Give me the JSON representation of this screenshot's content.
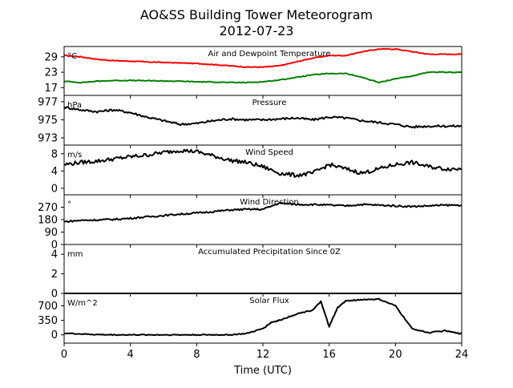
{
  "figure": {
    "title_line1": "AO&SS Building Tower Meteorogram",
    "title_line2": "2012-07-23",
    "xlabel": "Time (UTC)"
  },
  "colors": {
    "temperature": "#ff0000",
    "dewpoint": "#008000",
    "default": "#000000"
  },
  "chart_data": [
    {
      "type": "line",
      "title": "Air and Dewpoint Temperature",
      "unit": "°C",
      "ylim": [
        14,
        33
      ],
      "yticks": [
        17,
        23,
        29
      ],
      "series": [
        {
          "color": "#ff0000",
          "x": [
            0,
            1,
            2,
            3,
            4,
            5,
            6,
            7,
            8,
            9,
            10,
            11,
            12,
            13,
            14,
            15,
            16,
            17,
            18,
            19,
            20,
            21,
            22,
            23,
            24
          ],
          "y": [
            29.5,
            29,
            28,
            27.5,
            27.3,
            27,
            26.8,
            26.6,
            26.4,
            26,
            25.5,
            25,
            25,
            25.5,
            27,
            28.5,
            29.5,
            29.5,
            31,
            32,
            32,
            31,
            30,
            30,
            30
          ]
        },
        {
          "color": "#008000",
          "x": [
            0,
            1,
            2,
            3,
            4,
            5,
            6,
            7,
            8,
            9,
            10,
            11,
            12,
            13,
            14,
            15,
            16,
            17,
            18,
            19,
            20,
            21,
            22,
            23,
            24
          ],
          "y": [
            19.5,
            19,
            19.5,
            19.8,
            19.8,
            19.7,
            19.6,
            19.5,
            19.3,
            19.2,
            19,
            19,
            19.3,
            20,
            21,
            22,
            22.5,
            22.5,
            21,
            19,
            20.5,
            21.5,
            23,
            23,
            23
          ]
        }
      ],
      "xlim": [
        0,
        24
      ],
      "xticks": [
        0,
        4,
        8,
        12,
        16,
        20,
        24
      ]
    },
    {
      "type": "line",
      "title": "Pressure",
      "unit": "hPa",
      "ylim": [
        972.2,
        977.7
      ],
      "yticks": [
        973,
        975,
        977
      ],
      "series": [
        {
          "color": "#000000",
          "x": [
            0,
            1,
            2,
            3,
            4,
            5,
            6,
            7,
            8,
            9,
            10,
            11,
            12,
            13,
            14,
            15,
            16,
            17,
            18,
            19,
            20,
            21,
            22,
            23,
            24
          ],
          "y": [
            976.4,
            976.1,
            975.9,
            976.1,
            975.8,
            975.3,
            974.9,
            974.5,
            974.6,
            974.9,
            975.1,
            975,
            975,
            975.1,
            975.2,
            975.0,
            975.3,
            975.2,
            974.9,
            974.7,
            974.5,
            974.2,
            974.3,
            974.3,
            974.3
          ]
        }
      ],
      "xlim": [
        0,
        24
      ],
      "xticks": [
        0,
        4,
        8,
        12,
        16,
        20,
        24
      ]
    },
    {
      "type": "line",
      "title": "Wind Speed",
      "unit": "m/s",
      "ylim": [
        -1.5,
        10
      ],
      "yticks": [
        0,
        4,
        8
      ],
      "series": [
        {
          "color": "#000000",
          "x": [
            0,
            1,
            2,
            3,
            4,
            5,
            6,
            7,
            8,
            9,
            10,
            11,
            12,
            13,
            14,
            15,
            16,
            17,
            18,
            19,
            20,
            21,
            22,
            23,
            24
          ],
          "y": [
            5.5,
            6,
            6.3,
            6.8,
            7.3,
            7.7,
            8.3,
            8.8,
            8.5,
            7.5,
            6.5,
            6,
            5,
            3.5,
            3,
            3.5,
            5.5,
            4.5,
            3.5,
            4.5,
            5.5,
            6,
            5,
            4.5,
            4.5
          ]
        }
      ],
      "xlim": [
        0,
        24
      ],
      "xticks": [
        0,
        4,
        8,
        12,
        16,
        20,
        24
      ]
    },
    {
      "type": "line",
      "title": "Wind Direction",
      "unit": "°",
      "ylim": [
        0,
        360
      ],
      "yticks": [
        0,
        90,
        180,
        270
      ],
      "series": [
        {
          "color": "#000000",
          "x": [
            0,
            1,
            2,
            3,
            4,
            5,
            6,
            7,
            8,
            9,
            10,
            11,
            12,
            13,
            14,
            15,
            16,
            17,
            18,
            19,
            20,
            21,
            22,
            23,
            24
          ],
          "y": [
            165,
            175,
            178,
            182,
            190,
            200,
            210,
            220,
            228,
            238,
            250,
            255,
            255,
            300,
            290,
            290,
            285,
            280,
            290,
            285,
            280,
            275,
            280,
            285,
            285
          ]
        }
      ],
      "xlim": [
        0,
        24
      ],
      "xticks": [
        0,
        4,
        8,
        12,
        16,
        20,
        24
      ]
    },
    {
      "type": "line",
      "title": "Accumulated Precipitation Since 0Z",
      "unit": "mm",
      "ylim": [
        0,
        5
      ],
      "yticks": [
        0,
        2,
        4
      ],
      "series": [
        {
          "color": "#000000",
          "x": [
            0,
            24
          ],
          "y": [
            0,
            0
          ]
        }
      ],
      "xlim": [
        0,
        24
      ],
      "xticks": [
        0,
        4,
        8,
        12,
        16,
        20,
        24
      ]
    },
    {
      "type": "line",
      "title": "Solar Flux",
      "unit": "W/m^2",
      "ylim": [
        -200,
        1000
      ],
      "yticks": [
        0,
        350,
        700
      ],
      "series": [
        {
          "color": "#000000",
          "x": [
            0,
            1,
            2,
            3,
            4,
            5,
            6,
            7,
            8,
            9,
            10,
            11,
            12,
            12.5,
            13,
            14,
            15,
            15.5,
            16,
            16.5,
            17,
            18,
            19,
            20,
            21,
            22,
            23,
            24
          ],
          "y": [
            40,
            20,
            5,
            0,
            0,
            0,
            0,
            0,
            0,
            0,
            0,
            30,
            150,
            300,
            350,
            500,
            600,
            800,
            200,
            650,
            820,
            850,
            860,
            700,
            150,
            50,
            100,
            20
          ]
        }
      ],
      "xlim": [
        0,
        24
      ],
      "xticks": [
        0,
        4,
        8,
        12,
        16,
        20,
        24
      ]
    }
  ]
}
